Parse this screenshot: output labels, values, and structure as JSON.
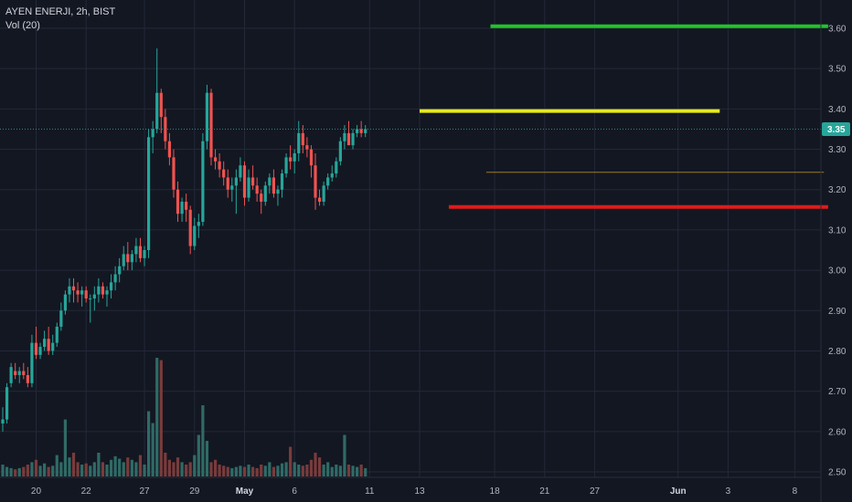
{
  "legend": {
    "symbol_line": "AYEN ENERJI, 2h, BIST",
    "volume_line": "Vol (20)"
  },
  "colors": {
    "background": "#131722",
    "grid": "#232838",
    "up": "#26a69a",
    "down": "#ef5350",
    "up_volume": "#2f6b66",
    "down_volume": "#7a3b3b",
    "price_line": "#26a69a",
    "green_level": "#23c32b",
    "yellow_level": "#e6ea1d",
    "red_level": "#e01b1b",
    "thin_level": "#a07c1e",
    "last_price_bg": "#26a69a"
  },
  "chart_data": {
    "type": "candlestick",
    "symbol": "AYEN ENERJI",
    "interval": "2h",
    "exchange": "BIST",
    "y_axis": {
      "ylim": [
        2.485,
        3.645
      ],
      "ticks": [
        "2.50",
        "2.60",
        "2.70",
        "2.80",
        "2.90",
        "3.00",
        "3.10",
        "3.20",
        "3.30",
        "3.40",
        "3.50",
        "3.60"
      ]
    },
    "x_axis": {
      "ticks": [
        {
          "label": "20",
          "bar": 8
        },
        {
          "label": "22",
          "bar": 20
        },
        {
          "label": "27",
          "bar": 34
        },
        {
          "label": "29",
          "bar": 46
        },
        {
          "label": "May",
          "bar": 58,
          "bold": true
        },
        {
          "label": "6",
          "bar": 70
        },
        {
          "label": "11",
          "bar": 88
        },
        {
          "label": "13",
          "bar": 100
        },
        {
          "label": "18",
          "bar": 118
        },
        {
          "label": "21",
          "bar": 130
        },
        {
          "label": "27",
          "bar": 142
        },
        {
          "label": "Jun",
          "bar": 162,
          "bold": true
        },
        {
          "label": "3",
          "bar": 174
        },
        {
          "label": "8",
          "bar": 190
        }
      ]
    },
    "last_price": "3.35",
    "candles": [
      [
        2.62,
        2.66,
        2.6,
        2.63
      ],
      [
        2.63,
        2.72,
        2.62,
        2.71
      ],
      [
        2.72,
        2.77,
        2.71,
        2.76
      ],
      [
        2.75,
        2.77,
        2.73,
        2.74
      ],
      [
        2.74,
        2.76,
        2.72,
        2.75
      ],
      [
        2.75,
        2.77,
        2.73,
        2.74
      ],
      [
        2.74,
        2.76,
        2.71,
        2.72
      ],
      [
        2.72,
        2.84,
        2.71,
        2.82
      ],
      [
        2.82,
        2.86,
        2.78,
        2.79
      ],
      [
        2.79,
        2.82,
        2.78,
        2.81
      ],
      [
        2.81,
        2.85,
        2.8,
        2.83
      ],
      [
        2.83,
        2.86,
        2.79,
        2.8
      ],
      [
        2.8,
        2.84,
        2.79,
        2.82
      ],
      [
        2.82,
        2.87,
        2.81,
        2.86
      ],
      [
        2.86,
        2.92,
        2.85,
        2.9
      ],
      [
        2.9,
        2.95,
        2.89,
        2.94
      ],
      [
        2.94,
        2.98,
        2.92,
        2.96
      ],
      [
        2.96,
        2.98,
        2.92,
        2.95
      ],
      [
        2.95,
        2.97,
        2.92,
        2.94
      ],
      [
        2.94,
        2.96,
        2.91,
        2.95
      ],
      [
        2.95,
        2.96,
        2.92,
        2.93
      ],
      [
        2.93,
        2.94,
        2.87,
        2.93
      ],
      [
        2.93,
        2.96,
        2.9,
        2.94
      ],
      [
        2.94,
        2.98,
        2.92,
        2.96
      ],
      [
        2.96,
        2.97,
        2.93,
        2.94
      ],
      [
        2.94,
        2.96,
        2.91,
        2.95
      ],
      [
        2.95,
        2.99,
        2.93,
        2.97
      ],
      [
        2.97,
        3.01,
        2.95,
        2.99
      ],
      [
        2.99,
        3.03,
        2.97,
        3.01
      ],
      [
        3.01,
        3.06,
        3.0,
        3.04
      ],
      [
        3.04,
        3.07,
        3.0,
        3.02
      ],
      [
        3.02,
        3.05,
        3.0,
        3.04
      ],
      [
        3.04,
        3.08,
        3.02,
        3.06
      ],
      [
        3.06,
        3.08,
        3.02,
        3.03
      ],
      [
        3.03,
        3.06,
        3.01,
        3.05
      ],
      [
        3.05,
        3.35,
        3.03,
        3.33
      ],
      [
        3.33,
        3.37,
        3.29,
        3.35
      ],
      [
        3.35,
        3.55,
        3.34,
        3.44
      ],
      [
        3.44,
        3.45,
        3.34,
        3.38
      ],
      [
        3.38,
        3.4,
        3.3,
        3.32
      ],
      [
        3.32,
        3.34,
        3.26,
        3.28
      ],
      [
        3.28,
        3.3,
        3.18,
        3.2
      ],
      [
        3.2,
        3.22,
        3.12,
        3.14
      ],
      [
        3.14,
        3.18,
        3.12,
        3.17
      ],
      [
        3.17,
        3.19,
        3.12,
        3.15
      ],
      [
        3.15,
        3.16,
        3.04,
        3.06
      ],
      [
        3.06,
        3.13,
        3.05,
        3.11
      ],
      [
        3.11,
        3.14,
        3.08,
        3.12
      ],
      [
        3.12,
        3.34,
        3.11,
        3.32
      ],
      [
        3.32,
        3.46,
        3.3,
        3.44
      ],
      [
        3.44,
        3.45,
        3.26,
        3.28
      ],
      [
        3.28,
        3.3,
        3.25,
        3.27
      ],
      [
        3.27,
        3.29,
        3.23,
        3.25
      ],
      [
        3.25,
        3.27,
        3.21,
        3.23
      ],
      [
        3.23,
        3.25,
        3.18,
        3.2
      ],
      [
        3.2,
        3.23,
        3.17,
        3.21
      ],
      [
        3.21,
        3.25,
        3.14,
        3.23
      ],
      [
        3.23,
        3.28,
        3.22,
        3.26
      ],
      [
        3.26,
        3.27,
        3.16,
        3.18
      ],
      [
        3.18,
        3.25,
        3.17,
        3.23
      ],
      [
        3.23,
        3.26,
        3.2,
        3.21
      ],
      [
        3.21,
        3.23,
        3.17,
        3.19
      ],
      [
        3.19,
        3.2,
        3.14,
        3.17
      ],
      [
        3.17,
        3.22,
        3.16,
        3.21
      ],
      [
        3.21,
        3.24,
        3.19,
        3.23
      ],
      [
        3.23,
        3.25,
        3.18,
        3.19
      ],
      [
        3.19,
        3.21,
        3.16,
        3.2
      ],
      [
        3.2,
        3.25,
        3.18,
        3.24
      ],
      [
        3.24,
        3.29,
        3.23,
        3.28
      ],
      [
        3.28,
        3.31,
        3.25,
        3.27
      ],
      [
        3.27,
        3.3,
        3.24,
        3.29
      ],
      [
        3.29,
        3.37,
        3.27,
        3.34
      ],
      [
        3.34,
        3.36,
        3.29,
        3.31
      ],
      [
        3.31,
        3.33,
        3.28,
        3.3
      ],
      [
        3.3,
        3.31,
        3.23,
        3.26
      ],
      [
        3.26,
        3.29,
        3.15,
        3.18
      ],
      [
        3.18,
        3.2,
        3.16,
        3.17
      ],
      [
        3.17,
        3.22,
        3.16,
        3.21
      ],
      [
        3.21,
        3.24,
        3.2,
        3.23
      ],
      [
        3.23,
        3.26,
        3.22,
        3.24
      ],
      [
        3.24,
        3.28,
        3.23,
        3.27
      ],
      [
        3.27,
        3.33,
        3.26,
        3.32
      ],
      [
        3.32,
        3.36,
        3.3,
        3.34
      ],
      [
        3.34,
        3.37,
        3.32,
        3.31
      ],
      [
        3.31,
        3.35,
        3.3,
        3.34
      ],
      [
        3.34,
        3.36,
        3.33,
        3.35
      ],
      [
        3.35,
        3.37,
        3.33,
        3.34
      ],
      [
        3.34,
        3.36,
        3.33,
        3.35
      ]
    ],
    "volumes": [
      0.1,
      0.08,
      0.07,
      0.06,
      0.07,
      0.08,
      0.1,
      0.12,
      0.14,
      0.09,
      0.11,
      0.08,
      0.09,
      0.18,
      0.12,
      0.48,
      0.16,
      0.2,
      0.12,
      0.1,
      0.11,
      0.09,
      0.12,
      0.2,
      0.12,
      0.1,
      0.14,
      0.17,
      0.15,
      0.12,
      0.16,
      0.14,
      0.12,
      0.18,
      0.1,
      0.55,
      0.45,
      1.0,
      0.98,
      0.2,
      0.14,
      0.12,
      0.16,
      0.12,
      0.1,
      0.12,
      0.18,
      0.35,
      0.6,
      0.3,
      0.12,
      0.14,
      0.1,
      0.09,
      0.08,
      0.07,
      0.08,
      0.09,
      0.08,
      0.1,
      0.08,
      0.07,
      0.1,
      0.09,
      0.12,
      0.08,
      0.09,
      0.11,
      0.12,
      0.25,
      0.12,
      0.1,
      0.09,
      0.1,
      0.14,
      0.2,
      0.16,
      0.1,
      0.12,
      0.08,
      0.1,
      0.09,
      0.35,
      0.1,
      0.09,
      0.08,
      0.1,
      0.07
    ],
    "levels": [
      {
        "name": "green",
        "price": 3.605,
        "from_bar": 117,
        "to_bar": 198,
        "color_key": "green_level",
        "width": 4
      },
      {
        "name": "yellow",
        "price": 3.395,
        "from_bar": 100,
        "to_bar": 172,
        "color_key": "yellow_level",
        "width": 4
      },
      {
        "name": "thin",
        "price": 3.243,
        "from_bar": 116,
        "to_bar": 197,
        "color_key": "thin_level",
        "width": 1
      },
      {
        "name": "red",
        "price": 3.157,
        "from_bar": 107,
        "to_bar": 198,
        "color_key": "red_level",
        "width": 4
      }
    ]
  }
}
